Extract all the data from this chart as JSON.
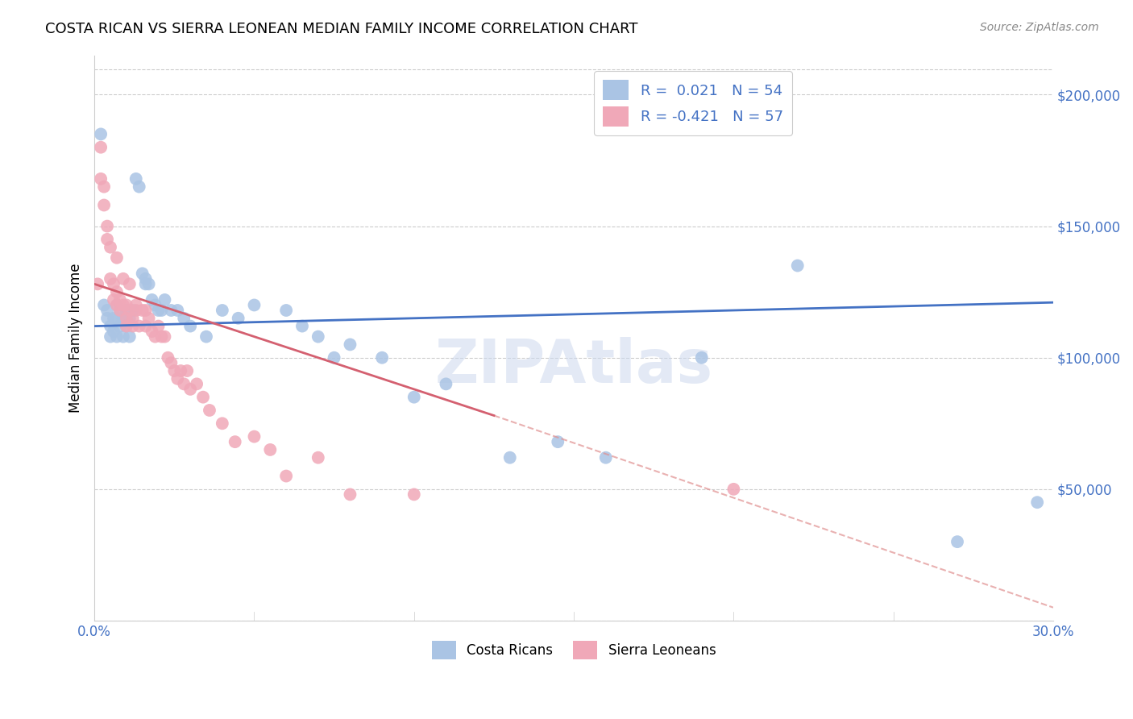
{
  "title": "COSTA RICAN VS SIERRA LEONEAN MEDIAN FAMILY INCOME CORRELATION CHART",
  "source": "Source: ZipAtlas.com",
  "ylabel": "Median Family Income",
  "y_ticks": [
    0,
    50000,
    100000,
    150000,
    200000
  ],
  "y_tick_labels": [
    "",
    "$50,000",
    "$100,000",
    "$150,000",
    "$200,000"
  ],
  "xlim": [
    0.0,
    0.3
  ],
  "ylim": [
    0,
    215000
  ],
  "legend_label1": "Costa Ricans",
  "legend_label2": "Sierra Leoneans",
  "color_blue": "#aac4e4",
  "color_pink": "#f0a8b8",
  "color_blue_text": "#4472c4",
  "color_pink_text": "#d05060",
  "line_blue": "#4472c4",
  "line_pink": "#d46070",
  "line_gray_dashed": "#e09090",
  "watermark": "ZIPAtlas",
  "blue_line_x0": 0.0,
  "blue_line_x1": 0.3,
  "blue_line_y0": 112000,
  "blue_line_y1": 121000,
  "pink_line_x0": 0.0,
  "pink_line_x1": 0.125,
  "pink_line_y0": 128000,
  "pink_line_y1": 78000,
  "gray_line_x0": 0.125,
  "gray_line_x1": 0.3,
  "gray_line_y0": 78000,
  "gray_line_y1": 5000,
  "costa_rican_x": [
    0.002,
    0.003,
    0.004,
    0.004,
    0.005,
    0.005,
    0.006,
    0.006,
    0.007,
    0.007,
    0.007,
    0.008,
    0.008,
    0.009,
    0.009,
    0.01,
    0.01,
    0.011,
    0.011,
    0.012,
    0.013,
    0.014,
    0.015,
    0.016,
    0.016,
    0.017,
    0.018,
    0.019,
    0.02,
    0.021,
    0.022,
    0.024,
    0.026,
    0.028,
    0.03,
    0.035,
    0.04,
    0.045,
    0.05,
    0.06,
    0.065,
    0.07,
    0.075,
    0.08,
    0.09,
    0.1,
    0.11,
    0.13,
    0.145,
    0.16,
    0.19,
    0.22,
    0.27,
    0.295
  ],
  "costa_rican_y": [
    185000,
    120000,
    118000,
    115000,
    112000,
    108000,
    115000,
    110000,
    120000,
    115000,
    108000,
    118000,
    112000,
    115000,
    108000,
    118000,
    112000,
    115000,
    108000,
    118000,
    168000,
    165000,
    132000,
    130000,
    128000,
    128000,
    122000,
    120000,
    118000,
    118000,
    122000,
    118000,
    118000,
    115000,
    112000,
    108000,
    118000,
    115000,
    120000,
    118000,
    112000,
    108000,
    100000,
    105000,
    100000,
    85000,
    90000,
    62000,
    68000,
    62000,
    100000,
    135000,
    30000,
    45000
  ],
  "sierra_x": [
    0.001,
    0.002,
    0.002,
    0.003,
    0.003,
    0.004,
    0.004,
    0.005,
    0.005,
    0.006,
    0.006,
    0.007,
    0.007,
    0.007,
    0.008,
    0.008,
    0.009,
    0.009,
    0.01,
    0.01,
    0.01,
    0.011,
    0.011,
    0.012,
    0.012,
    0.013,
    0.013,
    0.014,
    0.015,
    0.016,
    0.016,
    0.017,
    0.018,
    0.019,
    0.02,
    0.021,
    0.022,
    0.023,
    0.024,
    0.025,
    0.026,
    0.027,
    0.028,
    0.029,
    0.03,
    0.032,
    0.034,
    0.036,
    0.04,
    0.044,
    0.05,
    0.055,
    0.06,
    0.07,
    0.08,
    0.1,
    0.2
  ],
  "sierra_y": [
    128000,
    180000,
    168000,
    165000,
    158000,
    150000,
    145000,
    142000,
    130000,
    128000,
    122000,
    138000,
    125000,
    120000,
    122000,
    118000,
    130000,
    120000,
    120000,
    115000,
    112000,
    118000,
    128000,
    115000,
    112000,
    120000,
    118000,
    112000,
    118000,
    112000,
    118000,
    115000,
    110000,
    108000,
    112000,
    108000,
    108000,
    100000,
    98000,
    95000,
    92000,
    95000,
    90000,
    95000,
    88000,
    90000,
    85000,
    80000,
    75000,
    68000,
    70000,
    65000,
    55000,
    62000,
    48000,
    48000,
    50000
  ]
}
